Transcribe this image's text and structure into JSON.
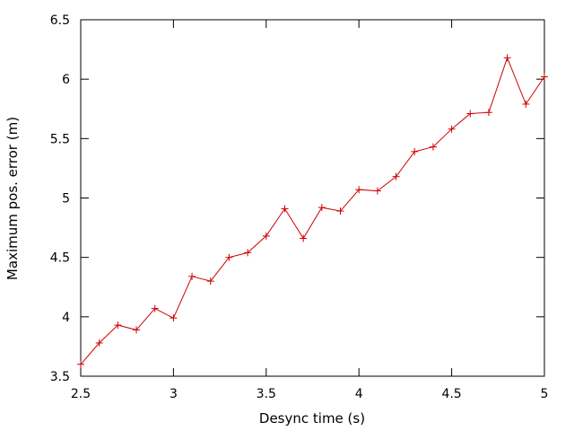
{
  "chart_data": {
    "type": "line",
    "title": "",
    "xlabel": "Desync time (s)",
    "ylabel": "Maximum pos. error (m)",
    "xlim": [
      2.5,
      5
    ],
    "ylim": [
      3.5,
      6.5
    ],
    "xticks": [
      2.5,
      3,
      3.5,
      4,
      4.5,
      5
    ],
    "xtick_labels": [
      "2.5",
      "3",
      "3.5",
      "4",
      "4.5",
      "5"
    ],
    "yticks": [
      3.5,
      4,
      4.5,
      5,
      5.5,
      6,
      6.5
    ],
    "ytick_labels": [
      "3.5",
      "4",
      "4.5",
      "5",
      "5.5",
      "6",
      "6.5"
    ],
    "grid": false,
    "legend": "none",
    "marker": "plus",
    "series": [
      {
        "color": "#cc0000",
        "x": [
          2.5,
          2.6,
          2.7,
          2.8,
          2.9,
          3.0,
          3.1,
          3.2,
          3.3,
          3.4,
          3.5,
          3.6,
          3.7,
          3.8,
          3.9,
          4.0,
          4.1,
          4.2,
          4.3,
          4.4,
          4.5,
          4.6,
          4.7,
          4.8,
          4.9,
          5.0
        ],
        "y": [
          3.6,
          3.78,
          3.93,
          3.89,
          4.07,
          3.99,
          4.34,
          4.3,
          4.5,
          4.54,
          4.68,
          4.91,
          4.66,
          4.92,
          4.89,
          5.07,
          5.06,
          5.18,
          5.39,
          5.43,
          5.58,
          5.71,
          5.72,
          6.18,
          5.79,
          6.02
        ]
      }
    ]
  }
}
